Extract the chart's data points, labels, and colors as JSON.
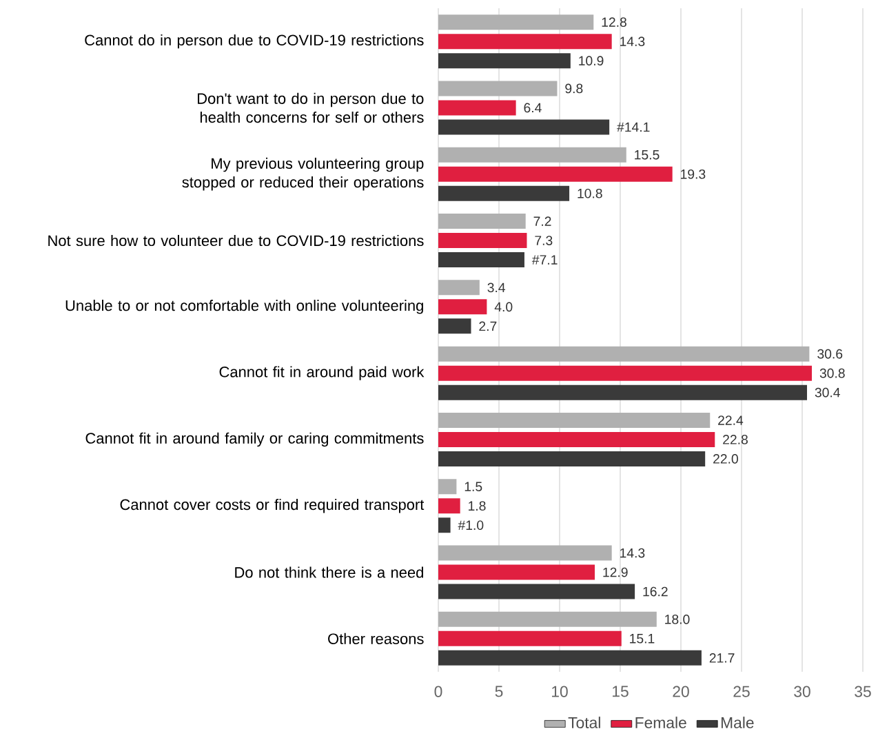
{
  "chart_data": {
    "type": "bar",
    "orientation": "horizontal",
    "categories": [
      "Cannot do in person due to COVID-19 restrictions",
      "Don't want to do in person due to health concerns for self or others",
      "My previous volunteering group stopped or reduced their operations",
      "Not sure how to volunteer due to COVID-19 restrictions",
      "Unable to or not comfortable with online volunteering",
      "Cannot fit in around paid work",
      "Cannot fit in around family or caring commitments",
      "Cannot cover costs or find required transport",
      "Do not think there is a need",
      "Other reasons"
    ],
    "series": [
      {
        "name": "Total",
        "color": "#b0b0b0",
        "values": [
          12.8,
          9.8,
          15.5,
          7.2,
          3.4,
          30.6,
          22.4,
          1.5,
          14.3,
          18.0
        ],
        "value_labels": [
          "12.8",
          "9.8",
          "15.5",
          "7.2",
          "3.4",
          "30.6",
          "22.4",
          "1.5",
          "14.3",
          "18.0"
        ]
      },
      {
        "name": "Female",
        "color": "#e01f40",
        "values": [
          14.3,
          6.4,
          19.3,
          7.3,
          4.0,
          30.8,
          22.8,
          1.8,
          12.9,
          15.1
        ],
        "value_labels": [
          "14.3",
          "6.4",
          "19.3",
          "7.3",
          "4.0",
          "30.8",
          "22.8",
          "1.8",
          "12.9",
          "15.1"
        ]
      },
      {
        "name": "Male",
        "color": "#3a3a3a",
        "values": [
          10.9,
          14.1,
          10.8,
          7.1,
          2.7,
          30.4,
          22.0,
          1.0,
          16.2,
          21.7
        ],
        "value_labels": [
          "10.9",
          "#14.1",
          "10.8",
          "#7.1",
          "2.7",
          "30.4",
          "22.0",
          "#1.0",
          "16.2",
          "21.7"
        ]
      }
    ],
    "xlim": [
      0,
      35
    ],
    "xticks": [
      0,
      5,
      10,
      15,
      20,
      25,
      30,
      35
    ],
    "grid": "x",
    "legend": "bottom"
  }
}
